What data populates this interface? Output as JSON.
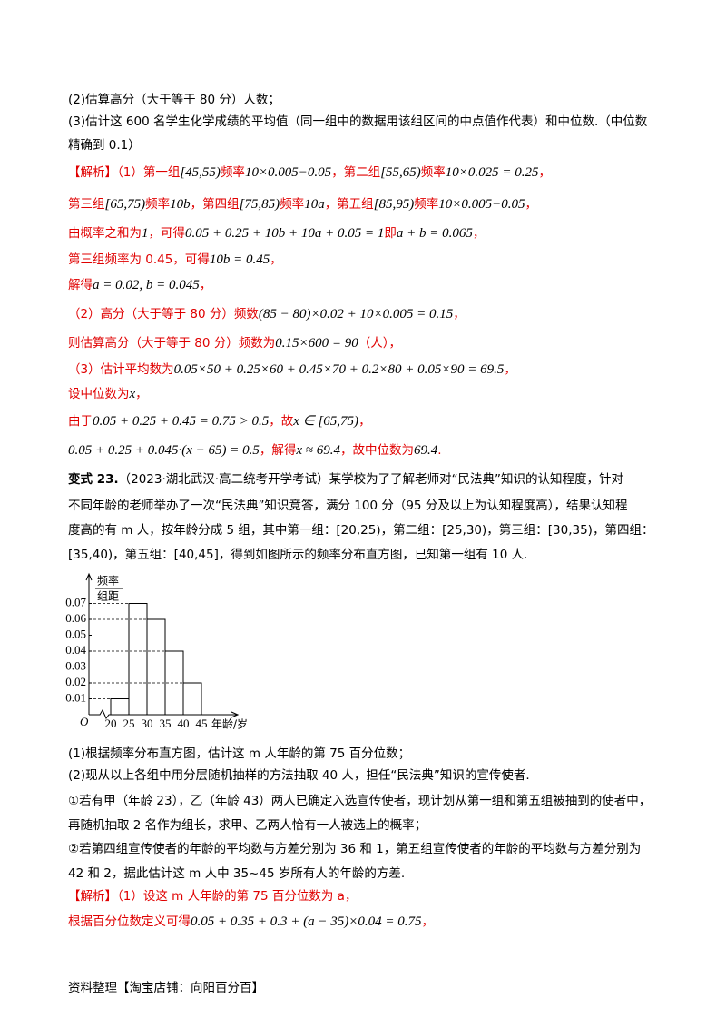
{
  "part1": {
    "lines": [
      "(2)估算高分（大于等于 80 分）人数；",
      "(3)估计这 600 名学生化学成绩的平均值（同一组中的数据用该组区间的中点值作代表）和中位数.（中位数",
      "精确到 0.1）"
    ]
  },
  "solution1": {
    "lines": [
      [
        "【解析】（1）第一组",
        "[45,55)",
        "频率",
        "10×0.005−0.05",
        "，第二组",
        "[55,65)",
        "频率",
        "10×0.025 = 0.25",
        "，"
      ],
      [
        "第三组",
        "[65,75)",
        "频率",
        "10b",
        "，第四组",
        "[75,85)",
        "频率",
        "10a",
        "，第五组",
        "[85,95)",
        "频率",
        "10×0.005−0.05",
        "，"
      ],
      [
        "由概率之和为",
        "1",
        "，可得",
        "0.05 + 0.25 + 10b + 10a + 0.05 = 1",
        "即",
        "a + b = 0.065",
        "，"
      ],
      [
        "第三组频率为 0.45，可得",
        "10b = 0.45",
        "，"
      ],
      [
        "解得",
        "a = 0.02, b = 0.045",
        "，"
      ],
      [
        "（2）高分（大于等于 80 分）频数",
        "(85 − 80)×0.02 + 10×0.005 = 0.15",
        "，"
      ],
      [
        "则估算高分（大于等于 80 分）频数为",
        "0.15×600 = 90",
        "（人），"
      ],
      [
        "（3）估计平均数为",
        "0.05×50 + 0.25×60 + 0.45×70 + 0.2×80 + 0.05×90 = 69.5",
        "，"
      ],
      [
        "设中位数为",
        "x",
        "，"
      ],
      [
        "由于",
        "0.05 + 0.25 + 0.45 = 0.75 > 0.5",
        "，故",
        "x ∈ [65,75)",
        "，"
      ],
      [
        "0.05 + 0.25 + 0.045·(x − 65) = 0.5",
        "，解得",
        "x ≈ 69.4",
        "，故中位数为",
        "69.4",
        "."
      ]
    ]
  },
  "problem": {
    "label": "变式 23.",
    "lines": [
      "（2023·湖北武汉·高二统考开学考试）某学校为了了解老师对“民法典”知识的认知程度，针对",
      "不同年龄的老师举办了一次“民法典”知识竞答，满分 100 分（95 分及以上为认知程度高），结果认知程",
      "度高的有 m 人，按年龄分成 5 组，其中第一组：[20,25)，第二组：[25,30)，第三组：[30,35)，第四组：",
      "[35,40)，第五组：[40,45]，得到如图所示的频率分布直方图，已知第一组有 10 人."
    ]
  },
  "figure": {
    "type": "histogram",
    "y_label_top": "频率",
    "y_label_bottom": "组距",
    "x_label": "年龄/岁",
    "origin": "O",
    "bins": [
      20,
      25,
      30,
      35,
      40,
      45
    ],
    "values": [
      0.01,
      0.07,
      0.06,
      0.04,
      0.02
    ],
    "xlim": [
      14,
      45
    ],
    "ylim": [
      0,
      0.08
    ],
    "xticks": [
      20,
      25,
      30,
      35,
      40,
      45
    ],
    "yticks": [
      0.01,
      0.02,
      0.03,
      0.04,
      0.05,
      0.06,
      0.07
    ]
  },
  "questions": {
    "lines": [
      "(1)根据频率分布直方图，估计这 m 人年龄的第 75 百分位数；",
      "(2)现从以上各组中用分层随机抽样的方法抽取 40 人，担任“民法典”知识的宣传使者.",
      "①若有甲（年龄 23），乙（年龄 43）两人已确定入选宣传使者，现计划从第一组和第五组被抽到的使者中，",
      "再随机抽取 2 名作为组长，求甲、乙两人恰有一人被选上的概率；",
      "②若第四组宣传使者的年龄的平均数与方差分别为 36 和 1，第五组宣传使者的年龄的平均数与方差分别为",
      "42 和 2，据此估计这 m 人中 35~45 岁所有人的年龄的方差."
    ]
  },
  "solution2": {
    "lines": [
      [
        "【解析】（1）设这 m 人年龄的第 75 百分位数为 a，"
      ],
      [
        "根据百分位数定义可得",
        "0.05 + 0.35 + 0.3 + (a − 35)×0.04 = 0.75",
        "，"
      ]
    ]
  },
  "footer": "资料整理【淘宝店铺：向阳百分百】"
}
